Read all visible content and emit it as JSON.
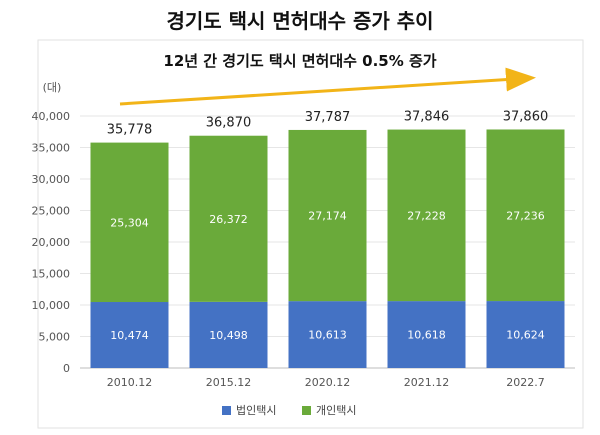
{
  "chart_data": {
    "type": "bar",
    "stacked": true,
    "title": "경기도 택시 면허대수 증가 추이",
    "subtitle": "12년 간 경기도 택시 면허대수 0.5% 증가",
    "ylabel": "(대)",
    "ylim": [
      0,
      40000
    ],
    "yticks": [
      "0",
      "5,000",
      "10,000",
      "15,000",
      "20,000",
      "25,000",
      "30,000",
      "35,000",
      "40,000"
    ],
    "categories": [
      "2010.12",
      "2015.12",
      "2020.12",
      "2021.12",
      "2022.7"
    ],
    "series": [
      {
        "name": "법인택시",
        "color": "#4472c4",
        "values": [
          10474,
          10498,
          10613,
          10618,
          10624
        ],
        "labels": [
          "10,474",
          "10,498",
          "10,613",
          "10,618",
          "10,624"
        ]
      },
      {
        "name": "개인택시",
        "color": "#6aaa3a",
        "values": [
          25304,
          26372,
          27174,
          27228,
          27236
        ],
        "labels": [
          "25,304",
          "26,372",
          "27,174",
          "27,228",
          "27,236"
        ]
      }
    ],
    "totals": [
      35778,
      36870,
      37787,
      37846,
      37860
    ],
    "total_labels": [
      "35,778",
      "36,870",
      "37,787",
      "37,846",
      "37,860"
    ],
    "legend_position": "bottom",
    "trend_arrow_color": "#f2b418",
    "grid": true
  }
}
